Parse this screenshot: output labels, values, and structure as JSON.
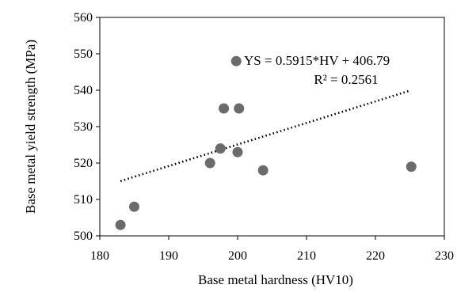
{
  "chart_data": {
    "type": "scatter",
    "title": "",
    "xlabel": "Base metal hardness (HV10)",
    "ylabel": "Base metal yield strength (MPa)",
    "xlim": [
      180,
      230
    ],
    "ylim": [
      500,
      560
    ],
    "xticks": [
      "180",
      "190",
      "200",
      "210",
      "220",
      "230"
    ],
    "yticks": [
      "500",
      "510",
      "520",
      "530",
      "540",
      "550",
      "560"
    ],
    "grid": false,
    "legend": "none",
    "points": [
      {
        "x": 183,
        "y": 503
      },
      {
        "x": 185,
        "y": 508
      },
      {
        "x": 196,
        "y": 520
      },
      {
        "x": 197.5,
        "y": 524
      },
      {
        "x": 198,
        "y": 535
      },
      {
        "x": 199.8,
        "y": 548
      },
      {
        "x": 200,
        "y": 523
      },
      {
        "x": 200.2,
        "y": 535
      },
      {
        "x": 203.7,
        "y": 518
      },
      {
        "x": 225.2,
        "y": 519
      }
    ],
    "trendline": {
      "type": "linear",
      "slope": 0.5915,
      "intercept": 406.79,
      "x_range": [
        183,
        225
      ],
      "style": "dotted"
    },
    "annotations": {
      "equation": "YS = 0.5915*HV + 406.79",
      "r_squared": "R² = 0.2561"
    },
    "colors": {
      "marker": "#6b6b6b",
      "trendline": "#000000",
      "axes": "#000000"
    }
  }
}
